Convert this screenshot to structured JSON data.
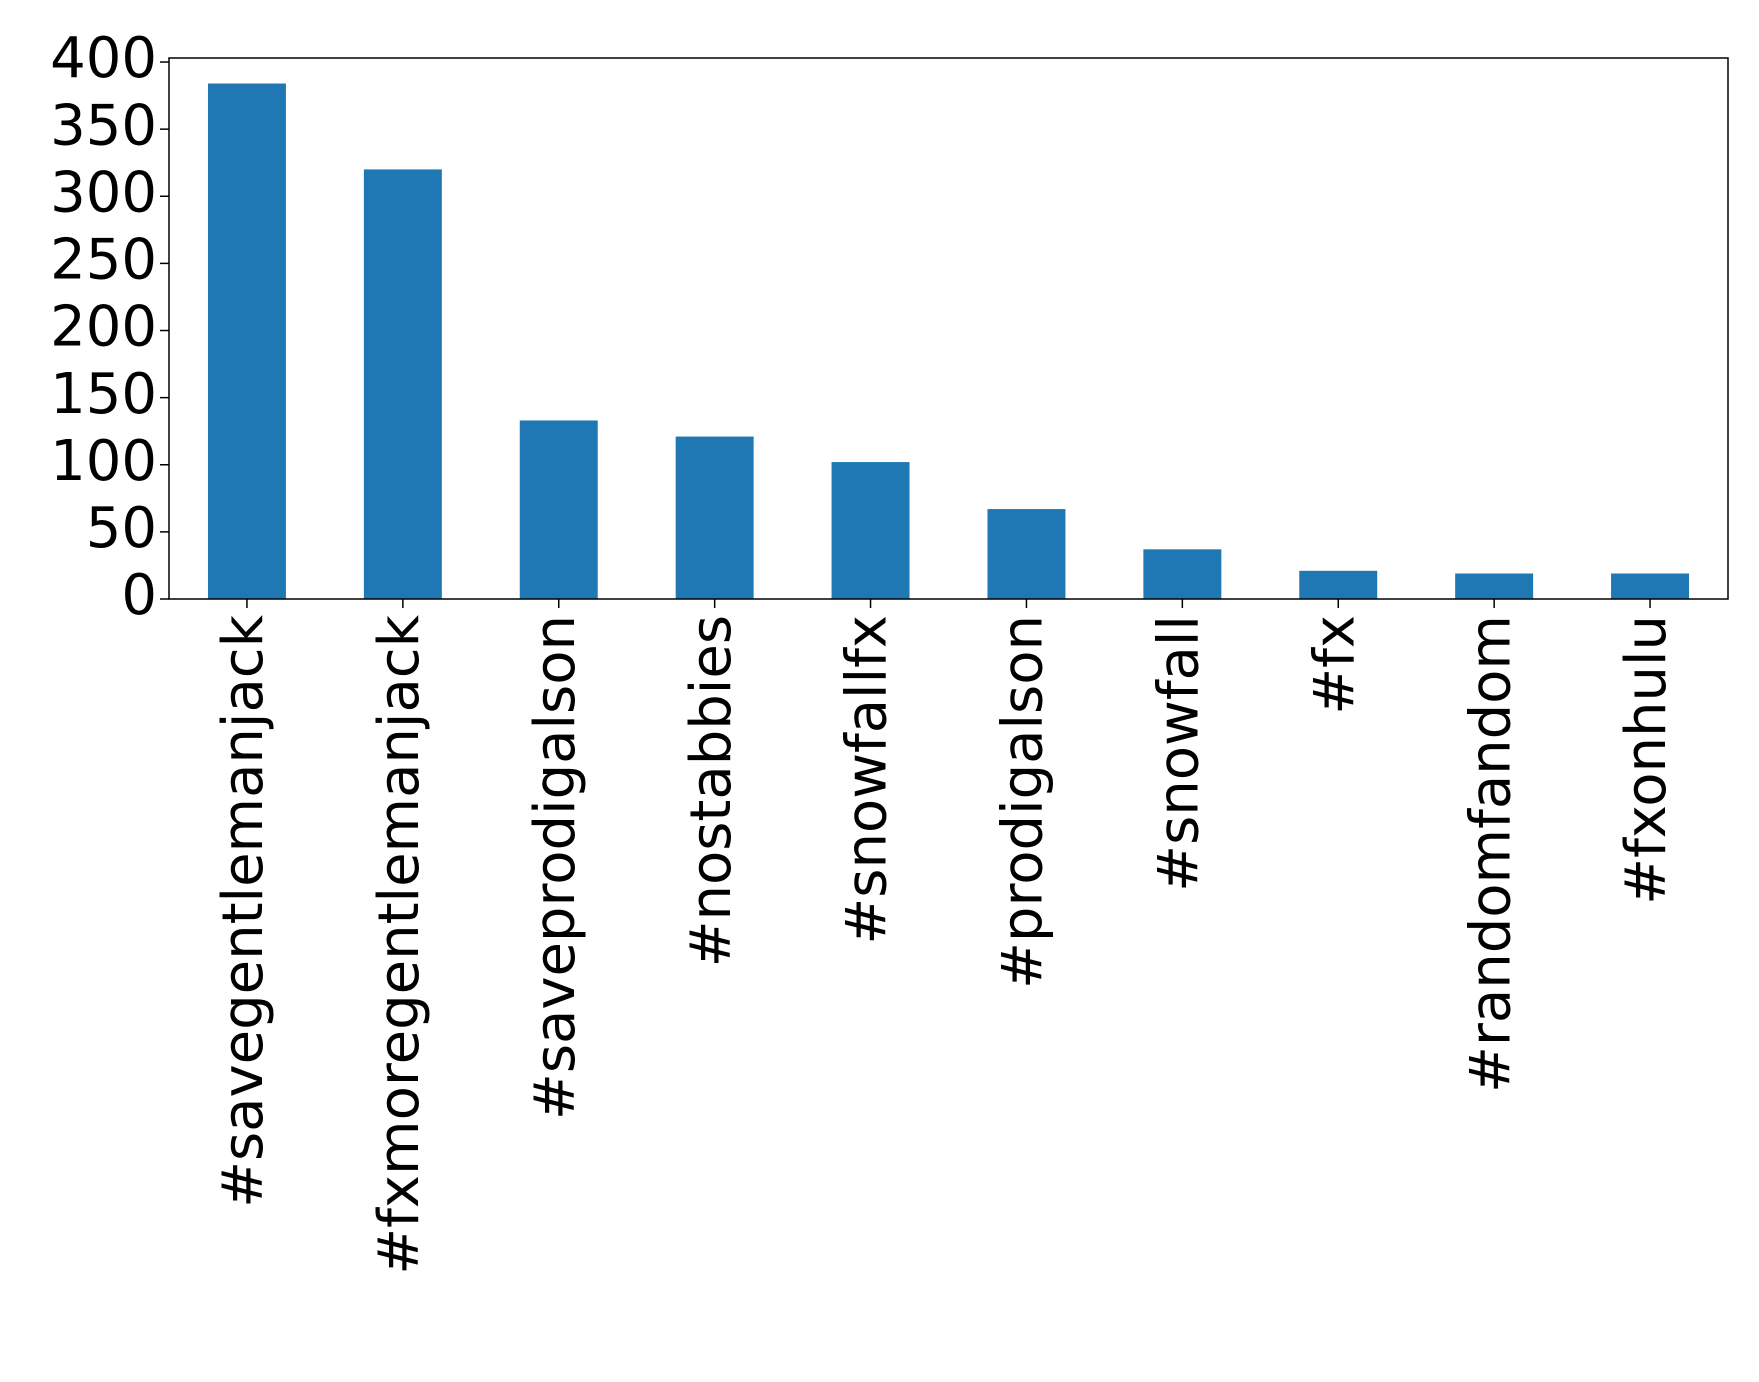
{
  "chart_data": {
    "type": "bar",
    "categories": [
      "#savegentlemanjack",
      "#fxmoregentlemanjack",
      "#saveprodigalson",
      "#nostabbies",
      "#snowfallfx",
      "#prodigalson",
      "#snowfall",
      "#fx",
      "#randomfandom",
      "#fxonhulu"
    ],
    "values": [
      384,
      320,
      133,
      121,
      102,
      67,
      37,
      21,
      19,
      19
    ],
    "color": "#1f77b4",
    "ylim": [
      0,
      403
    ],
    "yticks": [
      0,
      50,
      100,
      150,
      200,
      250,
      300,
      350,
      400
    ],
    "grid": false
  }
}
